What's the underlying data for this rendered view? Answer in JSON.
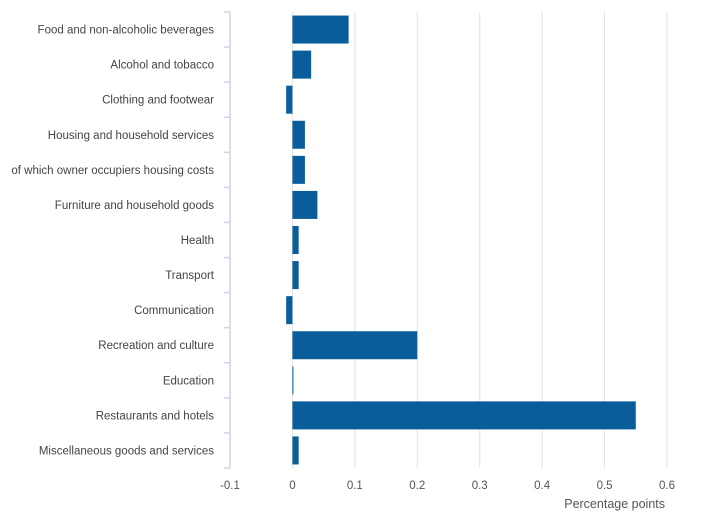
{
  "chart_data": {
    "type": "bar",
    "orientation": "horizontal",
    "categories": [
      "Food and non-alcoholic beverages",
      "Alcohol and tobacco",
      "Clothing and footwear",
      "Housing and household services",
      "of which owner occupiers housing costs",
      "Furniture and household goods",
      "Health",
      "Transport",
      "Communication",
      "Recreation and culture",
      "Education",
      "Restaurants and hotels",
      "Miscellaneous goods and services"
    ],
    "values": [
      0.09,
      0.03,
      -0.01,
      0.02,
      0.02,
      0.04,
      0.01,
      0.01,
      -0.01,
      0.2,
      0.0,
      0.55,
      0.01
    ],
    "xlabel": "Percentage points",
    "ylabel": "",
    "xlim": [
      -0.1,
      0.6
    ],
    "xticks": [
      "-0.1",
      "0",
      "0.1",
      "0.2",
      "0.3",
      "0.4",
      "0.5",
      "0.6"
    ],
    "grid": true,
    "bar_color": "#0a5d9b",
    "grid_color": "#e2e2e2",
    "axis_color": "#ccd3ea"
  }
}
